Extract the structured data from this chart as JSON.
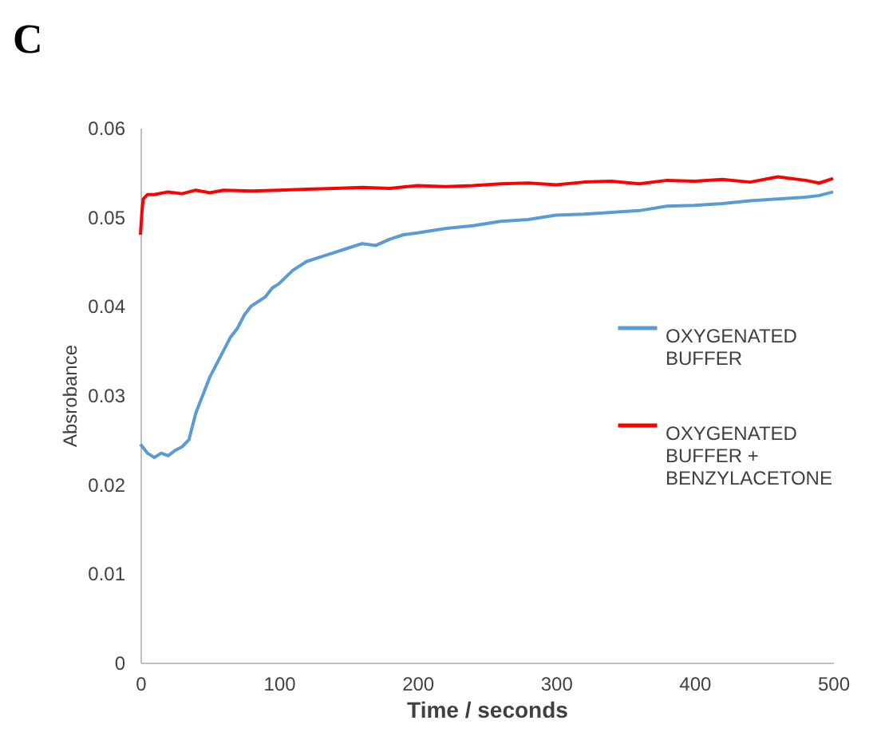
{
  "chart_data": {
    "type": "line",
    "title": "C",
    "xlabel": "Time / seconds",
    "ylabel": "Absrobance",
    "xlim": [
      0,
      500
    ],
    "xticks": [
      0,
      100,
      200,
      300,
      400,
      500
    ],
    "ylim": [
      0,
      0.06
    ],
    "yticks": [
      0,
      0.01,
      0.02,
      0.03,
      0.04,
      0.05,
      0.06
    ],
    "legend": "right",
    "grid": false,
    "series": [
      {
        "name": "OXYGENATED BUFFER",
        "color": "#5b9bd5",
        "x": [
          0,
          5,
          10,
          15,
          20,
          25,
          30,
          35,
          40,
          45,
          50,
          55,
          60,
          65,
          70,
          75,
          80,
          85,
          90,
          95,
          100,
          110,
          120,
          130,
          140,
          150,
          160,
          170,
          180,
          190,
          200,
          220,
          240,
          260,
          280,
          300,
          320,
          340,
          360,
          380,
          400,
          420,
          440,
          460,
          480,
          490,
          500
        ],
        "values": [
          0.0245,
          0.0235,
          0.023,
          0.0235,
          0.0232,
          0.0238,
          0.0242,
          0.025,
          0.028,
          0.03,
          0.032,
          0.0335,
          0.035,
          0.0365,
          0.0375,
          0.039,
          0.04,
          0.0405,
          0.041,
          0.042,
          0.0425,
          0.044,
          0.045,
          0.0455,
          0.046,
          0.0465,
          0.047,
          0.0468,
          0.0475,
          0.048,
          0.0482,
          0.0487,
          0.049,
          0.0495,
          0.0497,
          0.0502,
          0.0503,
          0.0505,
          0.0507,
          0.0512,
          0.0513,
          0.0515,
          0.0518,
          0.052,
          0.0522,
          0.0524,
          0.0528
        ]
      },
      {
        "name": "OXYGENATED BUFFER + BENZYLACETONE",
        "color": "#ff0000",
        "x": [
          0,
          1,
          2,
          5,
          10,
          20,
          30,
          40,
          50,
          60,
          80,
          100,
          120,
          140,
          160,
          180,
          200,
          220,
          240,
          260,
          280,
          300,
          320,
          340,
          360,
          380,
          400,
          420,
          440,
          460,
          480,
          490,
          500
        ],
        "values": [
          0.048,
          0.0505,
          0.052,
          0.0525,
          0.0525,
          0.0528,
          0.0526,
          0.053,
          0.0527,
          0.053,
          0.0529,
          0.053,
          0.0531,
          0.0532,
          0.0533,
          0.0532,
          0.0535,
          0.0534,
          0.0535,
          0.0537,
          0.0538,
          0.0536,
          0.0539,
          0.054,
          0.0537,
          0.0541,
          0.054,
          0.0542,
          0.0539,
          0.0545,
          0.0541,
          0.0538,
          0.0543
        ]
      }
    ]
  }
}
